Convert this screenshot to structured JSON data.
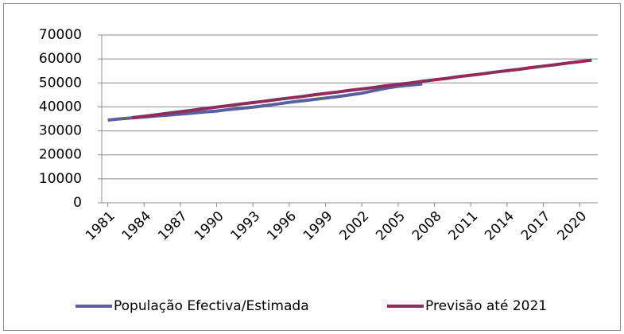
{
  "chart_data": {
    "type": "line",
    "x": [
      1981,
      1982,
      1983,
      1984,
      1985,
      1986,
      1987,
      1988,
      1989,
      1990,
      1991,
      1992,
      1993,
      1994,
      1995,
      1996,
      1997,
      1998,
      1999,
      2000,
      2001,
      2002,
      2003,
      2004,
      2005,
      2006,
      2007,
      2008,
      2009,
      2010,
      2011,
      2012,
      2013,
      2014,
      2015,
      2016,
      2017,
      2018,
      2019,
      2020,
      2021
    ],
    "xlim": [
      1980.5,
      2021.5
    ],
    "xticks": [
      1981,
      1984,
      1987,
      1990,
      1993,
      1996,
      1999,
      2002,
      2005,
      2008,
      2011,
      2014,
      2017,
      2020
    ],
    "ylim": [
      0,
      70000
    ],
    "yticks": [
      0,
      10000,
      20000,
      30000,
      40000,
      50000,
      60000,
      70000
    ],
    "grid": true,
    "legend": "bottom",
    "series": [
      {
        "name": "População Efectiva/Estimada",
        "color": "#5b5f9e",
        "values": [
          34500,
          35000,
          35400,
          35800,
          36200,
          36600,
          37000,
          37400,
          37900,
          38300,
          38900,
          39400,
          39900,
          40500,
          41200,
          41900,
          42500,
          43100,
          43700,
          44300,
          45000,
          45700,
          46800,
          47800,
          48600,
          49100,
          49600,
          null,
          null,
          null,
          null,
          null,
          null,
          null,
          null,
          null,
          null,
          null,
          null,
          null,
          null
        ]
      },
      {
        "name": "Previsão até 2021",
        "color": "#8e2c5c",
        "values": [
          null,
          null,
          35500,
          36100,
          36700,
          37400,
          38000,
          38600,
          39300,
          39900,
          40500,
          41200,
          41800,
          42400,
          43100,
          43700,
          44300,
          45000,
          45600,
          46200,
          46900,
          47500,
          48100,
          48800,
          49400,
          50000,
          50700,
          51300,
          51900,
          52600,
          53200,
          53800,
          54500,
          55100,
          55700,
          56400,
          57000,
          57600,
          58300,
          58900,
          59500
        ]
      }
    ]
  }
}
